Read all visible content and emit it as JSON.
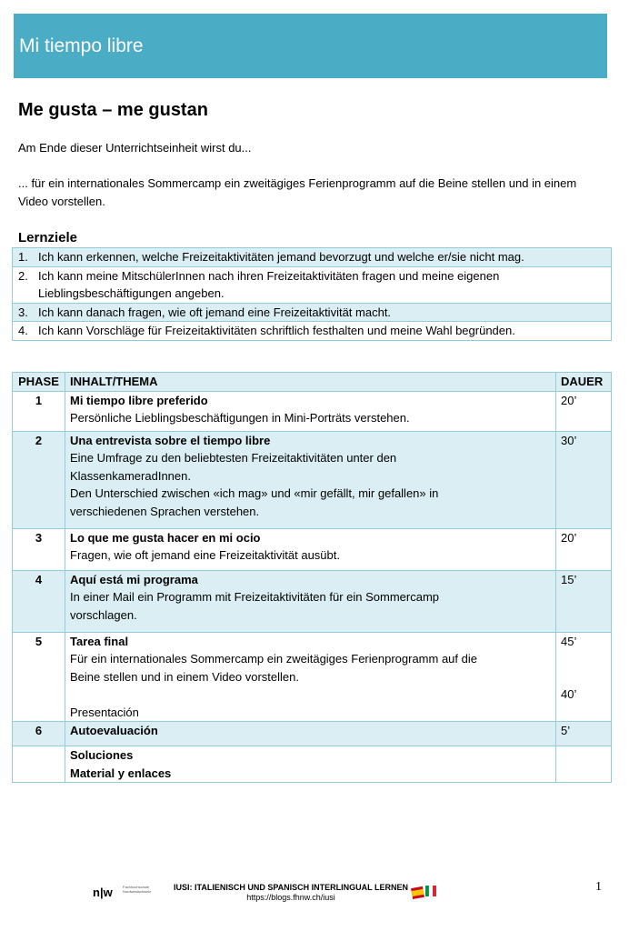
{
  "banner": {
    "title": "Mi tiempo libre",
    "color": "#4bacc6"
  },
  "heading": "Me gusta – me gustan",
  "intro": "Am Ende dieser Unterrichtseinheit wirst du...",
  "goal_text": "... für ein internationales Sommercamp ein zweitägiges Ferienprogramm auf die Beine stellen und in einem Video vorstellen.",
  "lernziele": {
    "title": "Lernziele",
    "items": [
      {
        "n": "1.",
        "text": "Ich kann erkennen, welche Freizeitaktivitäten jemand bevorzugt und welche er/sie nicht mag."
      },
      {
        "n": "2.",
        "text": "Ich kann meine MitschülerInnen nach ihren Freizeitaktivitäten fragen und meine eigenen",
        "text2": "Lieblingsbeschäftigungen angeben."
      },
      {
        "n": "3.",
        "text": "Ich kann danach fragen, wie oft jemand eine Freizeitaktivität macht."
      },
      {
        "n": "4.",
        "text": "Ich kann Vorschläge für Freizeitaktivitäten schriftlich festhalten und meine Wahl begründen."
      }
    ]
  },
  "phases": {
    "headers": [
      "PHASE",
      "INHALT/THEMA",
      "DAUER"
    ],
    "rows": [
      {
        "phase": "1",
        "title": "Mi tiempo libre preferido",
        "lines": [
          "Persönliche Lieblingsbeschäftigungen in Mini-Porträts verstehen."
        ],
        "dauer": "20’"
      },
      {
        "phase": "2",
        "title": "Una entrevista sobre el tiempo libre",
        "lines": [
          "Eine Umfrage zu den beliebtesten Freizeitaktivitäten unter den",
          "KlassenkameradInnen.",
          "Den Unterschied zwischen «ich mag» und «mir gefällt, mir gefallen» in",
          "verschiedenen Sprachen verstehen."
        ],
        "dauer": "30’"
      },
      {
        "phase": "3",
        "title": "Lo que me gusta hacer en mi ocio",
        "lines": [
          "Fragen, wie oft jemand eine Freizeitaktivität ausübt."
        ],
        "dauer": "20’"
      },
      {
        "phase": "4",
        "title": "Aquí está mi programa",
        "lines": [
          "In einer Mail ein Programm mit Freizeitaktivitäten für ein Sommercamp",
          "vorschlagen."
        ],
        "dauer": "15’"
      },
      {
        "phase": "5",
        "title": "Tarea final",
        "lines": [
          "Für ein internationales Sommercamp ein zweitägiges Ferienprogramm auf die",
          "Beine stellen und in einem Video vorstellen."
        ],
        "dauer": "45’",
        "extra": "Presentación",
        "extra_dauer": "40’"
      },
      {
        "phase": "6",
        "title": "Autoevaluación",
        "dauer": "5’"
      },
      {
        "title": "Soluciones",
        "title2": "Material y enlaces"
      }
    ]
  },
  "footer": {
    "logo": "n|w",
    "logo_sub": "Fachhochschule Nordwestschweiz",
    "title": "IUSI:  ITALIENISCH UND SPANISCH INTERLINGUAL LERNEN",
    "url": "https://blogs.fhnw.ch/iusi",
    "page": "1"
  }
}
